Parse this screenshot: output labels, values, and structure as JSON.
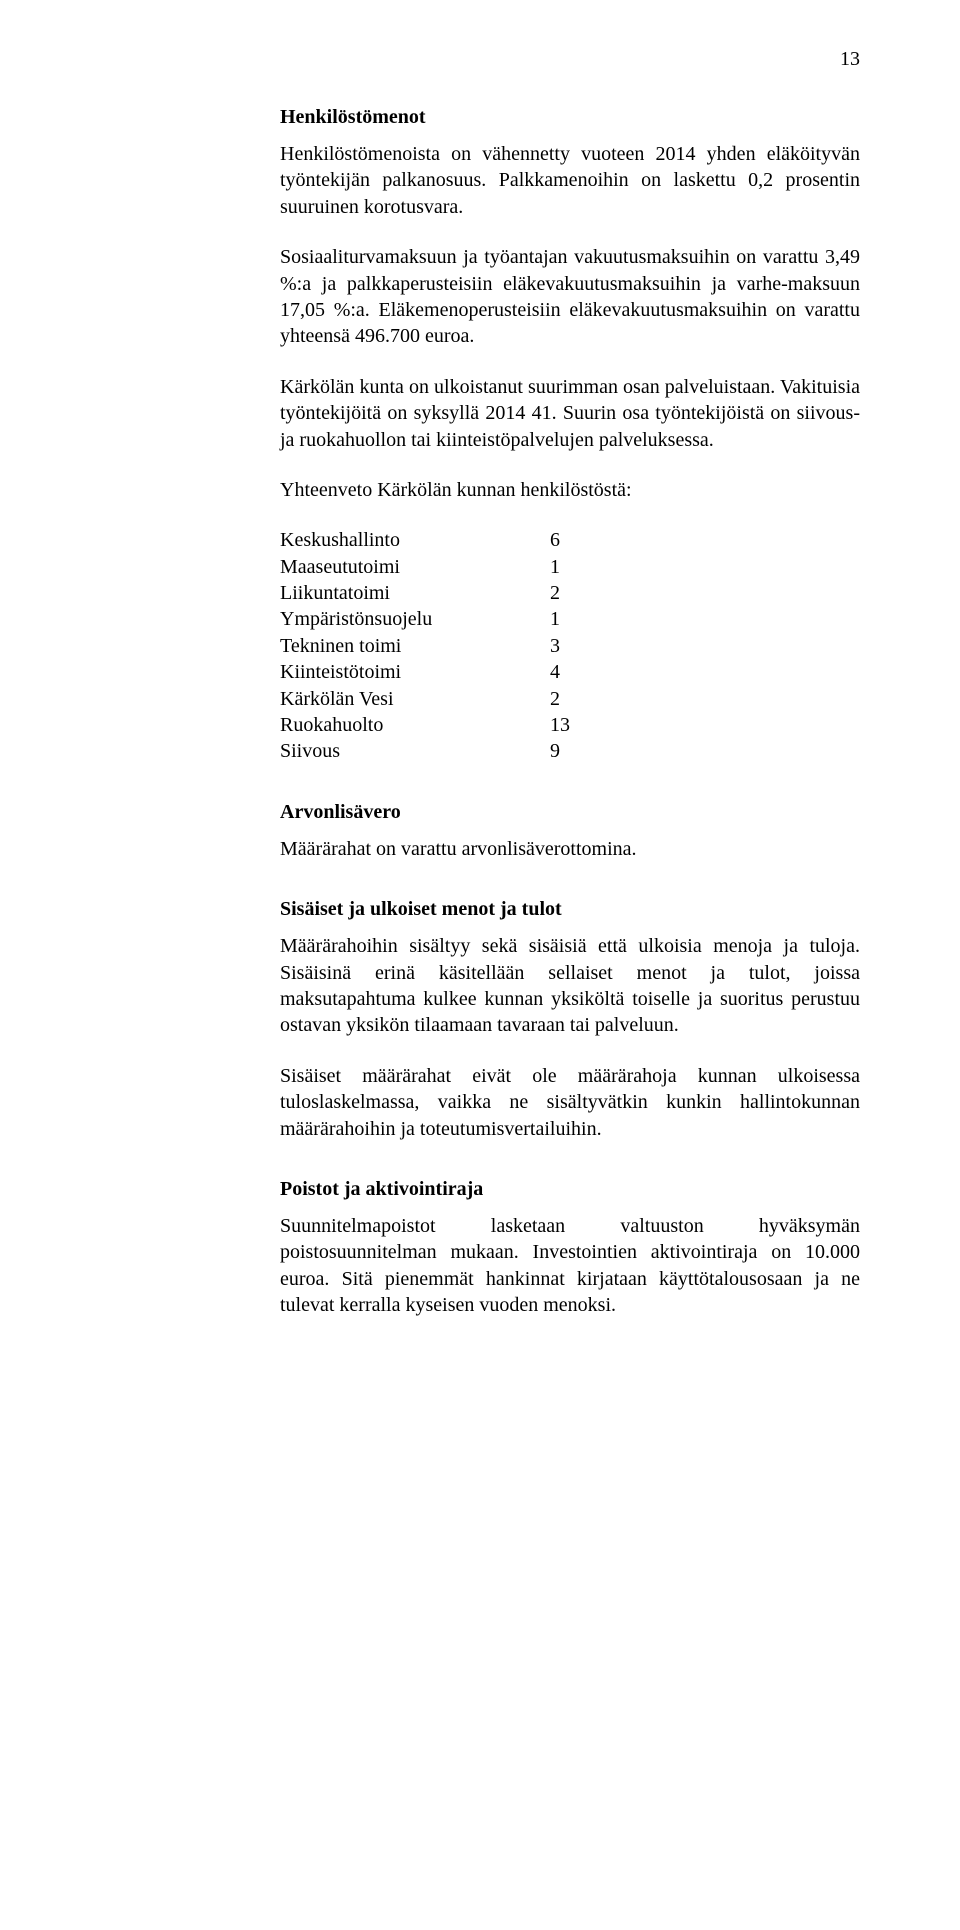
{
  "page_number": "13",
  "sections": {
    "henkilostomenot": {
      "heading": "Henkilöstömenot",
      "p1": "Henkilöstömenoista on vähennetty vuoteen 2014 yhden eläköityvän työntekijän palkanosuus. Palkkamenoihin on laskettu 0,2 prosentin suuruinen korotusvara.",
      "p2": "Sosiaaliturvamaksuun ja työantajan vakuutusmaksuihin on varattu 3,49 %:a ja palkkaperusteisiin eläkevakuutusmaksuihin ja varhe-maksuun 17,05 %:a. Eläkemenoperusteisiin eläkevakuutusmaksuihin on varattu yhteensä 496.700 euroa.",
      "p3": "Kärkölän kunta on ulkoistanut suurimman osan palveluistaan. Vakituisia työntekijöitä on syksyllä 2014 41. Suurin osa työntekijöistä on siivous- ja ruokahuollon tai kiinteistöpalvelujen palveluksessa.",
      "p4": "Yhteenveto  Kärkölän kunnan henkilöstöstä:"
    },
    "staff_table": [
      {
        "label": "Keskushallinto",
        "value": "6"
      },
      {
        "label": "Maaseututoimi",
        "value": "1"
      },
      {
        "label": "Liikuntatoimi",
        "value": "2"
      },
      {
        "label": "Ympäristönsuojelu",
        "value": "1"
      },
      {
        "label": "Tekninen toimi",
        "value": "3"
      },
      {
        "label": "Kiinteistötoimi",
        "value": "4"
      },
      {
        "label": "Kärkölän Vesi",
        "value": "2"
      },
      {
        "label": "Ruokahuolto",
        "value": "13"
      },
      {
        "label": "Siivous",
        "value": "9"
      }
    ],
    "arvonlisavero": {
      "heading": "Arvonlisävero",
      "p1": "Määrärahat on varattu arvonlisäverottomina."
    },
    "sisaiset": {
      "heading": "Sisäiset ja ulkoiset menot ja tulot",
      "p1": "Määrärahoihin sisältyy sekä sisäisiä että ulkoisia menoja ja tuloja. Sisäisinä erinä käsitellään sellaiset menot ja tulot, joissa maksutapahtuma kulkee kunnan yksiköltä toiselle ja suoritus perustuu ostavan yksikön tilaamaan tavaraan tai palveluun.",
      "p2": "Sisäiset määrärahat eivät ole määrärahoja kunnan ulkoisessa tuloslaskelmassa, vaikka ne sisältyvätkin kunkin hallintokunnan määrärahoihin ja toteutumisvertailuihin."
    },
    "poistot": {
      "heading": "Poistot ja aktivointiraja",
      "p1": "Suunnitelmapoistot lasketaan valtuuston hyväksymän poistosuunnitelman mukaan. Investointien aktivointiraja on 10.000 euroa. Sitä pienemmät hankinnat kirjataan käyttötalousosaan ja ne tulevat kerralla kyseisen vuoden menoksi."
    }
  }
}
